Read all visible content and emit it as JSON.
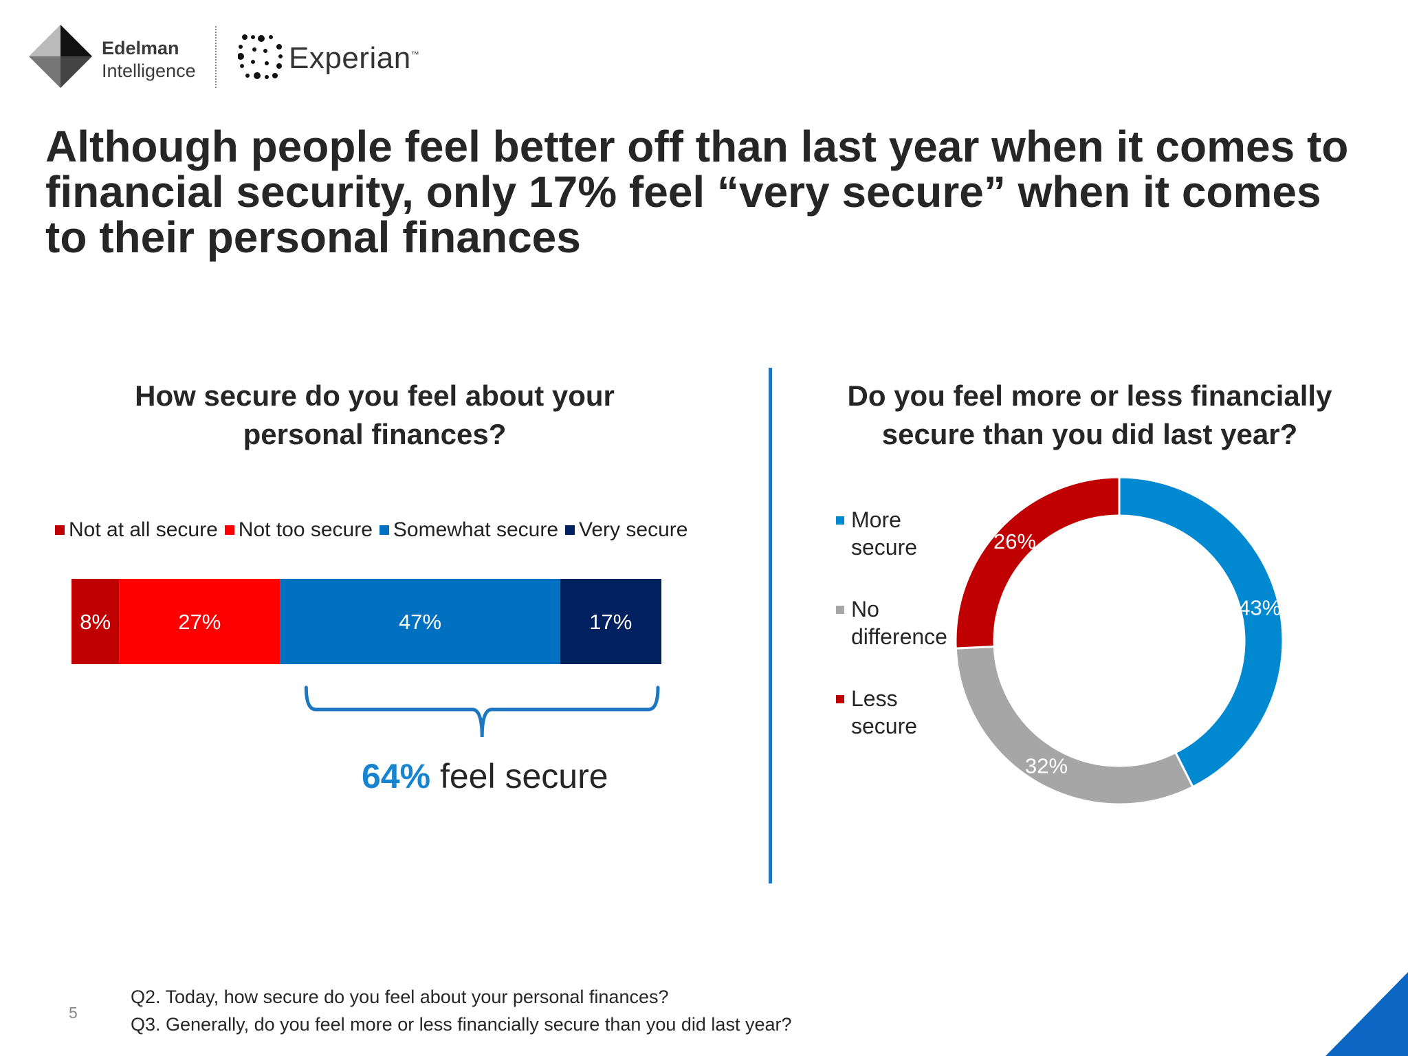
{
  "logos": {
    "edelman_line1": "Edelman",
    "edelman_line2": "Intelligence",
    "experian": "Experian",
    "experian_tm": "™"
  },
  "title": "Although people feel better off than last year when it comes to financial security, only 17% feel “very secure” when it comes to their personal finances",
  "colors": {
    "not_at_all": "#c00000",
    "not_too": "#ff0000",
    "somewhat": "#0070c0",
    "very": "#002060",
    "more_secure": "#0088d1",
    "no_difference": "#a6a6a6",
    "less_secure": "#c00000",
    "accent": "#1784d0"
  },
  "chart_data": [
    {
      "type": "bar",
      "subtype": "100% stacked horizontal",
      "title": "How secure do you feel about your personal finances?",
      "legend_position": "top",
      "series": [
        {
          "name": "Not at all secure",
          "value": 8,
          "label": "8%",
          "color": "#c00000"
        },
        {
          "name": "Not too secure",
          "value": 27,
          "label": "27%",
          "color": "#ff0000"
        },
        {
          "name": "Somewhat secure",
          "value": 47,
          "label": "47%",
          "color": "#0070c0"
        },
        {
          "name": "Very secure",
          "value": 17,
          "label": "17%",
          "color": "#002060"
        }
      ],
      "annotation": {
        "pct": "64%",
        "text": "feel secure",
        "spans": [
          "Somewhat secure",
          "Very secure"
        ]
      }
    },
    {
      "type": "pie",
      "subtype": "donut",
      "title": "Do you feel more or less financially secure than you did last year?",
      "legend_position": "left",
      "slices": [
        {
          "name": "More secure",
          "value": 43,
          "label": "43%",
          "color": "#0088d1"
        },
        {
          "name": "No difference",
          "value": 32,
          "label": "32%",
          "color": "#a6a6a6"
        },
        {
          "name": "Less secure",
          "value": 26,
          "label": "26%",
          "color": "#c00000"
        }
      ]
    }
  ],
  "footnotes": [
    "Q2. Today, how secure do you feel about your personal finances?",
    "Q3. Generally, do you feel more or less financially secure than you did last year?"
  ],
  "page_number": "5"
}
